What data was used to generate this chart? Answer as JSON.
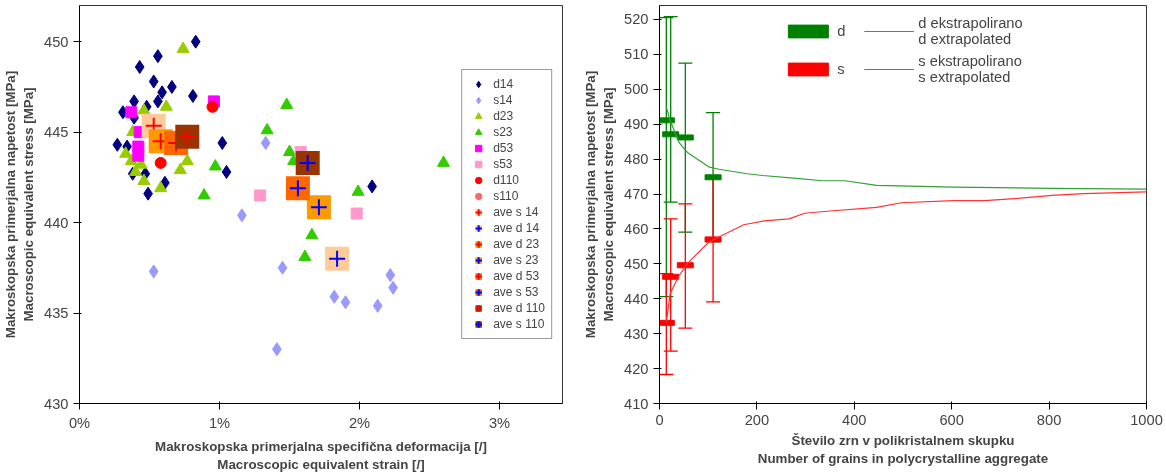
{
  "chart_data": [
    {
      "type": "scatter",
      "xlabel": "Makroskopska primerjalna specifična deformacija [/]\nMacroscopic equivalent strain [/]",
      "ylabel": "Makroskopska primerjalna napetost [MPa]\nMacroscopic equivalent stress [MPa]",
      "xlim": [
        0,
        3.45
      ],
      "ylim": [
        430,
        452
      ],
      "xticks": [
        {
          "value": 0,
          "label": "0%"
        },
        {
          "value": 1,
          "label": "1%"
        },
        {
          "value": 2,
          "label": "2%"
        },
        {
          "value": 3,
          "label": "3%"
        }
      ],
      "yticks": [
        430,
        435,
        440,
        445,
        450
      ],
      "grid": false,
      "legend": "right",
      "series": [
        {
          "name": "d14",
          "color": "#000080",
          "marker": "diamond",
          "x": [
            0.83,
            0.56,
            0.43,
            0.53,
            0.66,
            0.59,
            0.81,
            0.56,
            0.39,
            0.48,
            0.31,
            0.39,
            0.27,
            0.34,
            1.02,
            0.38,
            0.47,
            1.05,
            0.61,
            0.49,
            2.09
          ],
          "values": [
            450.0,
            449.2,
            448.6,
            447.8,
            447.5,
            447.2,
            447.0,
            446.7,
            446.7,
            446.4,
            446.1,
            445.8,
            444.3,
            444.2,
            444.4,
            442.7,
            442.7,
            442.8,
            442.2,
            441.6,
            442.0
          ]
        },
        {
          "name": "s14",
          "color": "#9999ff",
          "marker": "diamond",
          "x": [
            1.33,
            1.16,
            0.53,
            1.45,
            2.22,
            2.24,
            1.82,
            1.9,
            2.13,
            1.41
          ],
          "values": [
            444.4,
            440.4,
            437.3,
            437.5,
            437.1,
            436.4,
            435.9,
            435.6,
            435.4,
            433.0
          ]
        },
        {
          "name": "d23",
          "color": "#99cc00",
          "marker": "triangle",
          "x": [
            0.74,
            0.62,
            0.46,
            0.38,
            0.33,
            0.37,
            0.44,
            0.4,
            0.46,
            0.58,
            0.77,
            0.72
          ],
          "values": [
            449.6,
            446.4,
            446.2,
            445.0,
            443.8,
            443.4,
            443.2,
            442.8,
            442.3,
            441.9,
            443.4,
            442.9
          ]
        },
        {
          "name": "s23",
          "color": "#33cc00",
          "marker": "triangle",
          "x": [
            1.48,
            1.34,
            0.97,
            0.89,
            1.66,
            1.61,
            1.99,
            1.5,
            1.53,
            2.6
          ],
          "values": [
            446.5,
            445.1,
            443.1,
            441.5,
            439.3,
            438.1,
            441.7,
            443.9,
            443.4,
            443.3
          ]
        },
        {
          "name": "d53",
          "color": "#ff00ff",
          "marker": "square",
          "x": [
            0.37,
            0.96,
            0.43,
            0.42,
            0.42
          ],
          "values": [
            446.1,
            446.7,
            445.0,
            444.2,
            443.7
          ]
        },
        {
          "name": "s53",
          "color": "#ff99cc",
          "marker": "square",
          "x": [
            1.58,
            1.29,
            1.98
          ],
          "values": [
            443.9,
            441.5,
            440.5
          ]
        },
        {
          "name": "d110",
          "color": "#ff0000",
          "marker": "circle",
          "x": [
            0.95,
            0.58
          ],
          "values": [
            446.4,
            443.3
          ]
        },
        {
          "name": "s110",
          "color": "#ff6666",
          "marker": "circle"
        },
        {
          "name": "ave s 14",
          "color": "#ffcc99",
          "marker": "square",
          "x": [
            0.53
          ],
          "values": [
            445.35
          ]
        },
        {
          "color": "#ff0000",
          "marker": "cross",
          "x": [
            0.53
          ],
          "values": [
            445.35
          ]
        },
        {
          "name": "ave d 14",
          "color": "#ffcc99",
          "marker": "square",
          "x": [
            1.84
          ],
          "values": [
            438.0
          ]
        },
        {
          "color": "#0000ff",
          "marker": "cross",
          "x": [
            1.84
          ],
          "values": [
            438.0
          ]
        },
        {
          "name": "ave d 23",
          "color": "#ff9900",
          "marker": "square",
          "x": [
            0.58
          ],
          "values": [
            444.5
          ]
        },
        {
          "color": "#ff0000",
          "marker": "cross",
          "x": [
            0.58
          ],
          "values": [
            444.5
          ]
        },
        {
          "name": "ave s 23",
          "color": "#ff9900",
          "marker": "square",
          "x": [
            1.71
          ],
          "values": [
            440.85
          ]
        },
        {
          "color": "#0000ff",
          "marker": "cross",
          "x": [
            1.71
          ],
          "values": [
            440.85
          ]
        },
        {
          "name": "ave d 53",
          "color": "#ff6600",
          "marker": "square",
          "x": [
            0.69
          ],
          "values": [
            444.4
          ]
        },
        {
          "color": "#ff0000",
          "marker": "cross",
          "x": [
            0.69
          ],
          "values": [
            444.4
          ]
        },
        {
          "name": "ave s 53",
          "color": "#ff6600",
          "marker": "square",
          "x": [
            1.56
          ],
          "values": [
            441.9
          ]
        },
        {
          "color": "#0000ff",
          "marker": "cross",
          "x": [
            1.56
          ],
          "values": [
            441.9
          ]
        },
        {
          "name": "ave d 110",
          "color": "#993300",
          "marker": "square",
          "x": [
            0.77
          ],
          "values": [
            444.75
          ]
        },
        {
          "color": "#ff0000",
          "marker": "cross",
          "x": [
            0.77
          ],
          "values": [
            444.75
          ]
        },
        {
          "name": "ave s 110",
          "color": "#993300",
          "marker": "square",
          "x": [
            1.63
          ],
          "values": [
            443.3
          ]
        },
        {
          "color": "#0000ff",
          "marker": "cross",
          "x": [
            1.63
          ],
          "values": [
            443.3
          ]
        }
      ]
    },
    {
      "type": "line",
      "xlabel": "Število zrn v polikristalnem skupku\nNumber of grains in polycrystalline aggregate",
      "ylabel": "Makroskopska primerjalna napetost [MPa]\nMacroscopic equivalent stress [MPa]",
      "xlim": [
        0,
        1000
      ],
      "ylim": [
        410,
        524
      ],
      "xticks": [
        0,
        200,
        400,
        600,
        800,
        1000
      ],
      "yticks": [
        410,
        420,
        430,
        440,
        450,
        460,
        470,
        480,
        490,
        500,
        510,
        520
      ],
      "grid": false,
      "legend": "top",
      "series": [
        {
          "name": "d",
          "type": "scatter",
          "marker": "square",
          "color": "#008000",
          "x": [
            14,
            23,
            53,
            110
          ],
          "values": [
            491.1,
            487.1,
            486.2,
            474.8
          ],
          "errors": [
            [
              440.6,
              520.5
            ],
            [
              467.7,
              520.8
            ],
            [
              459.1,
              507.5
            ],
            [
              456.3,
              493.3
            ]
          ]
        },
        {
          "name": "s",
          "type": "scatter",
          "marker": "square",
          "color": "#ff0000",
          "x": [
            14,
            23,
            53,
            110
          ],
          "values": [
            433.1,
            446.3,
            449.6,
            457.0
          ],
          "errors": [
            [
              418.3,
              447.2
            ],
            [
              425.0,
              462.9
            ],
            [
              431.6,
              467.2
            ],
            [
              439.1,
              475.0
            ]
          ]
        },
        {
          "name": "d ekstrapolirano\nd extrapolated",
          "type": "line",
          "color": "#33a033",
          "x": [
            14,
            22,
            40,
            58,
            101,
            122,
            180,
            212,
            281,
            335,
            381,
            446,
            604,
            806,
            1000
          ],
          "values": [
            494.9,
            491.0,
            484.8,
            481.8,
            477.8,
            477.1,
            475.8,
            475.3,
            474.5,
            473.8,
            473.8,
            472.5,
            472.0,
            471.6,
            471.4
          ]
        },
        {
          "name": "s ekstrapolirano\ns extrapolated",
          "type": "line",
          "color": "#ff3333",
          "x": [
            14,
            22,
            40,
            58,
            101,
            122,
            173,
            215,
            266,
            298,
            338,
            446,
            496,
            604,
            668,
            741,
            806,
            870,
            1000
          ],
          "values": [
            433.1,
            441.6,
            446.6,
            450.2,
            456.2,
            457.7,
            461.2,
            462.3,
            462.9,
            464.5,
            465.0,
            466.2,
            467.5,
            468.1,
            468.1,
            468.8,
            469.6,
            470.1,
            470.6
          ]
        }
      ]
    }
  ]
}
